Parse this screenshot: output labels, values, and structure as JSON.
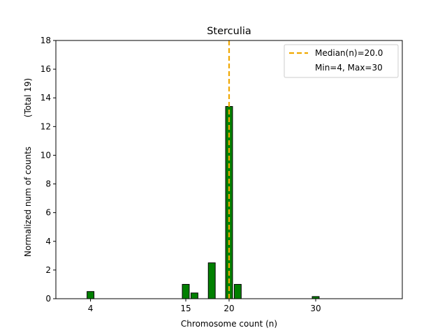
{
  "chart_data": {
    "type": "bar",
    "title": "Sterculia",
    "xlabel": "Chromosome count (n)",
    "ylabel": "Normalized num of counts",
    "ylabel_note": "(Total 19)",
    "xlim": [
      0,
      40
    ],
    "ylim": [
      0,
      18
    ],
    "x_ticks": [
      4,
      15,
      20,
      30
    ],
    "y_ticks": [
      0,
      2,
      4,
      6,
      8,
      10,
      12,
      14,
      16,
      18
    ],
    "bar_color": "#008000",
    "bar_edge_color": "#000000",
    "bar_width": 0.8,
    "bars": [
      {
        "x": 4,
        "value": 0.5
      },
      {
        "x": 15,
        "value": 1.0
      },
      {
        "x": 16,
        "value": 0.4
      },
      {
        "x": 18,
        "value": 2.5
      },
      {
        "x": 20,
        "value": 13.4
      },
      {
        "x": 21,
        "value": 1.0
      },
      {
        "x": 30,
        "value": 0.15
      }
    ],
    "median": {
      "x": 20,
      "color": "#f0a800"
    },
    "legend": {
      "position": "top-right",
      "median_label": "Median(n)=20.0",
      "range_label": "Min=4, Max=30"
    },
    "grid": false
  }
}
